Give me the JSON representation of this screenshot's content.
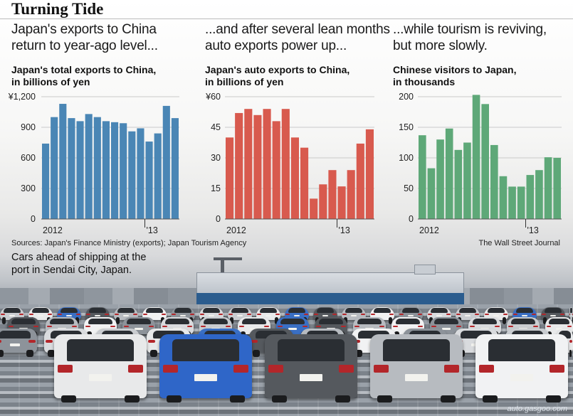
{
  "title": "Turning Tide",
  "panels": [
    {
      "headline": "Japan's exports to China\nreturn to year-ago level...",
      "subtitle": "Japan's total exports to China,\nin billions of yen"
    },
    {
      "headline": "...and after several lean months\nauto exports power up...",
      "subtitle": "Japan's auto exports to China,\nin billions of yen"
    },
    {
      "headline": "...while tourism is reviving,\nbut more slowly.",
      "subtitle": "Chinese visitors to Japan,\nin thousands"
    }
  ],
  "sources": "Sources: Japan's Finance Ministry (exports); Japan Tourism Agency",
  "credit": "The Wall Street Journal",
  "caption": "Cars ahead of shipping at the\nport in Sendai City, Japan.",
  "watermark": "auto.gasgoo.com",
  "chart_data": [
    {
      "type": "bar",
      "title": "Japan's total exports to China, in billions of yen",
      "color": "#4a86b5",
      "x_labels": [
        "2012",
        "'13"
      ],
      "ylim": [
        0,
        1200
      ],
      "yticks": [
        "¥1,200",
        "900",
        "600",
        "300",
        "0"
      ],
      "values": [
        740,
        1000,
        1130,
        990,
        960,
        1030,
        1000,
        960,
        950,
        940,
        860,
        890,
        760,
        840,
        1110,
        990
      ]
    },
    {
      "type": "bar",
      "title": "Japan's auto exports to China, in billions of yen",
      "color": "#d85a4e",
      "x_labels": [
        "2012",
        "'13"
      ],
      "ylim": [
        0,
        60
      ],
      "yticks": [
        "¥60",
        "45",
        "30",
        "15",
        "0"
      ],
      "values": [
        40,
        52,
        54,
        51,
        54,
        48,
        54,
        40,
        35,
        10,
        17,
        24,
        16,
        24,
        37,
        44
      ]
    },
    {
      "type": "bar",
      "title": "Chinese visitors to Japan, in thousands",
      "color": "#5ea878",
      "x_labels": [
        "2012",
        "'13"
      ],
      "ylim": [
        0,
        200
      ],
      "yticks": [
        "200",
        "150",
        "100",
        "50",
        "0"
      ],
      "values": [
        137,
        83,
        130,
        148,
        113,
        125,
        203,
        188,
        121,
        70,
        53,
        53,
        72,
        80,
        101,
        100
      ]
    }
  ]
}
